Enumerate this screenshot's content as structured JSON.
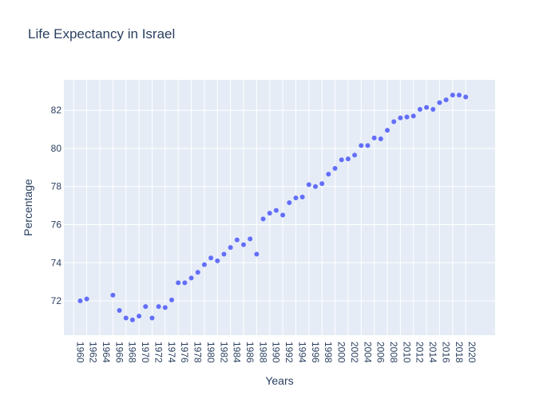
{
  "chart_data": {
    "type": "scatter",
    "title": "Life Expectancy in Israel",
    "xlabel": "Years",
    "ylabel": "Percentage",
    "xlim": [
      1958.5,
      2024.5
    ],
    "ylim": [
      70.2,
      83.6
    ],
    "x_tick_step": 2,
    "x_tick_start": 1960,
    "x_tick_end": 2020,
    "y_ticks": [
      72,
      74,
      76,
      78,
      80,
      82
    ],
    "grid": true,
    "legend": "none",
    "colors": {
      "marker": "#636efa",
      "plot_bg": "#e5ecf6",
      "grid": "#ffffff",
      "text": "#2a3f5f"
    },
    "series": [
      {
        "x": [
          1961,
          1962,
          1966,
          1967,
          1968,
          1969,
          1970,
          1971,
          1972,
          1973,
          1974,
          1975,
          1976,
          1977,
          1978,
          1979,
          1980,
          1981,
          1982,
          1983,
          1984,
          1985,
          1986,
          1987,
          1988,
          1989,
          1990,
          1991,
          1992,
          1993,
          1994,
          1995,
          1996,
          1997,
          1998,
          1999,
          2000,
          2001,
          2002,
          2003,
          2004,
          2005,
          2006,
          2007,
          2008,
          2009,
          2010,
          2011,
          2012,
          2013,
          2014,
          2015,
          2016,
          2017,
          2018,
          2019,
          2020
        ],
        "y": [
          72.0,
          72.1,
          72.3,
          71.5,
          71.1,
          71.0,
          71.2,
          71.7,
          71.1,
          71.7,
          71.65,
          72.05,
          72.95,
          72.95,
          73.2,
          73.5,
          73.9,
          74.25,
          74.1,
          74.45,
          74.8,
          75.2,
          74.95,
          75.25,
          74.45,
          76.3,
          76.6,
          76.75,
          76.5,
          77.15,
          77.4,
          77.45,
          78.1,
          78.0,
          78.15,
          78.65,
          78.95,
          79.4,
          79.45,
          79.65,
          80.15,
          80.15,
          80.55,
          80.5,
          80.95,
          81.4,
          81.6,
          81.65,
          81.7,
          82.05,
          82.15,
          82.05,
          82.4,
          82.55,
          82.8,
          82.8,
          82.7
        ]
      }
    ]
  }
}
